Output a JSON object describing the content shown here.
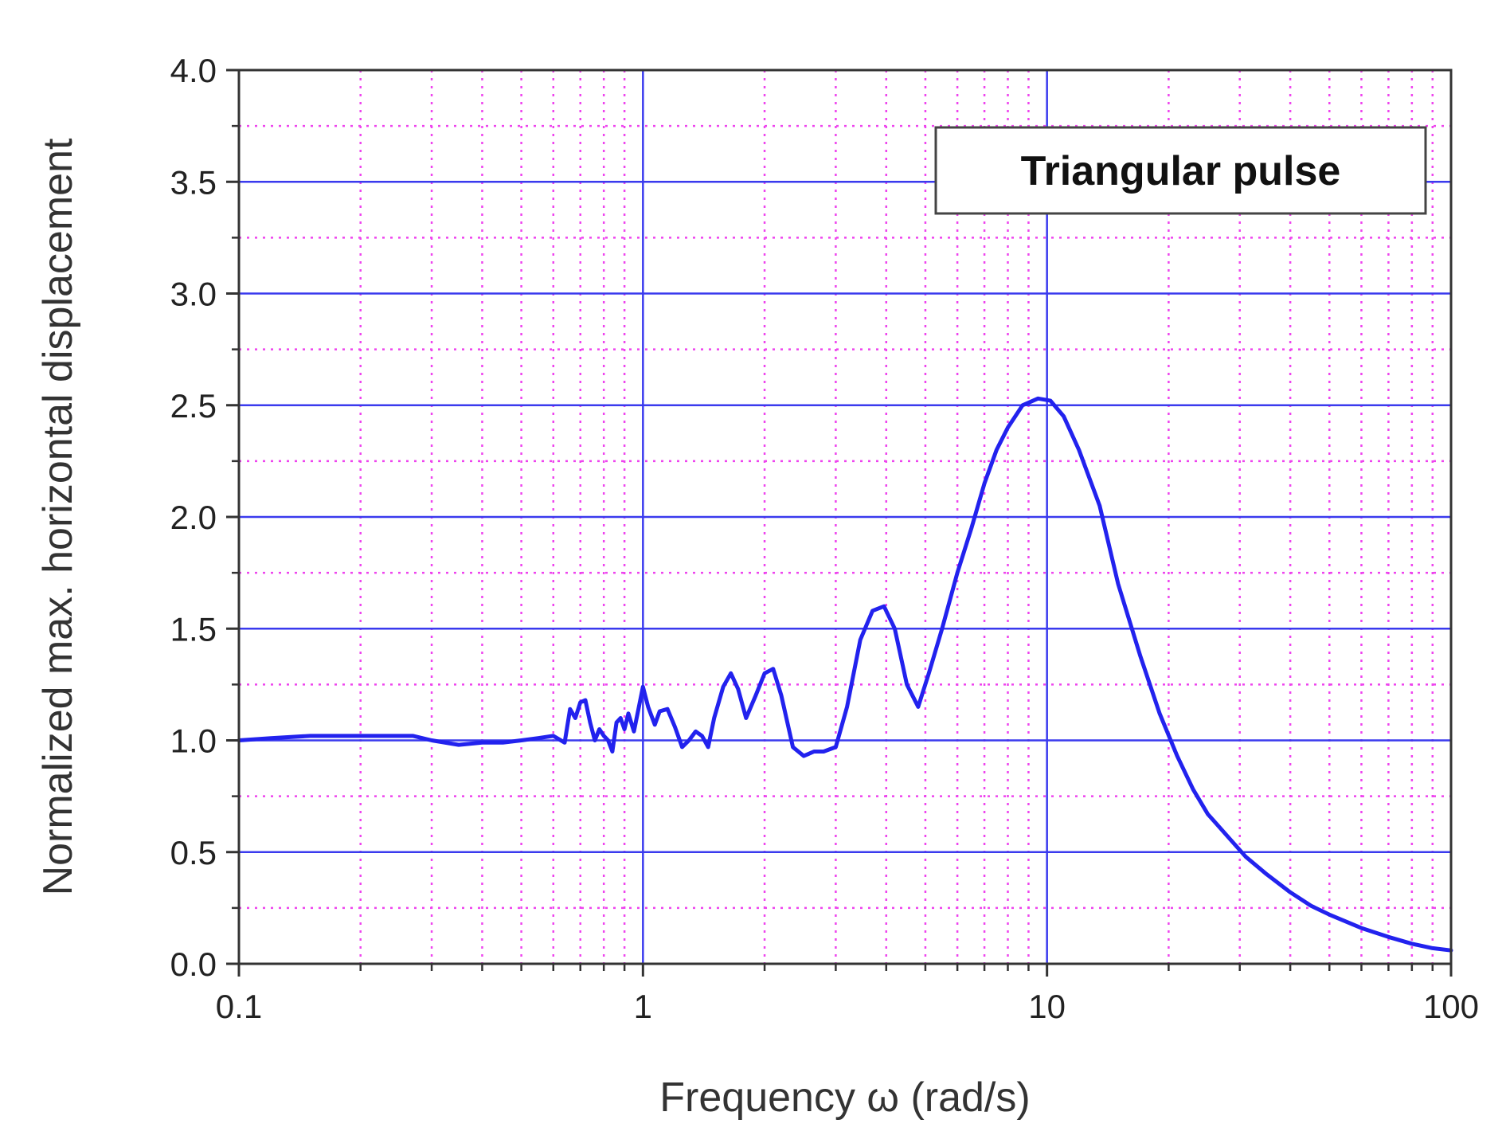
{
  "chart_data": {
    "type": "line",
    "xlabel": "Frequency ω (rad/s)",
    "ylabel": "Normalized max. horizontal displacement",
    "x_scale": "log",
    "xlim": [
      0.1,
      100
    ],
    "ylim": [
      0,
      4.0
    ],
    "x_ticks": [
      0.1,
      1,
      10,
      100
    ],
    "x_tick_labels": [
      "0.1",
      "1",
      "10",
      "100"
    ],
    "y_ticks": [
      0,
      0.5,
      1.0,
      1.5,
      2.0,
      2.5,
      3.0,
      3.5,
      4.0
    ],
    "y_tick_labels": [
      "0.0",
      "0.5",
      "1.0",
      "1.5",
      "2.0",
      "2.5",
      "3.0",
      "3.5",
      "4.0"
    ],
    "grid": {
      "major": true,
      "minor": true,
      "major_color": "#3a3aee",
      "minor_color": "#ee44ee",
      "minor_style": "dotted"
    },
    "legend": {
      "label": "Triangular pulse",
      "placement": "top-right"
    },
    "series": [
      {
        "name": "Triangular pulse",
        "color": "#2222ee",
        "x": [
          0.1,
          0.12,
          0.15,
          0.2,
          0.27,
          0.3,
          0.35,
          0.4,
          0.45,
          0.5,
          0.55,
          0.6,
          0.64,
          0.66,
          0.68,
          0.7,
          0.72,
          0.74,
          0.76,
          0.78,
          0.8,
          0.82,
          0.84,
          0.86,
          0.88,
          0.9,
          0.92,
          0.95,
          1.0,
          1.03,
          1.07,
          1.1,
          1.15,
          1.2,
          1.25,
          1.3,
          1.35,
          1.4,
          1.45,
          1.5,
          1.58,
          1.65,
          1.72,
          1.8,
          1.9,
          2.0,
          2.1,
          2.2,
          2.35,
          2.5,
          2.65,
          2.8,
          3.0,
          3.2,
          3.45,
          3.7,
          3.95,
          4.2,
          4.5,
          4.8,
          5.1,
          5.5,
          6.0,
          6.5,
          7.0,
          7.5,
          8.0,
          8.7,
          9.5,
          10.2,
          11.0,
          12.0,
          13.5,
          15.0,
          17.0,
          19.0,
          21.0,
          23.0,
          25.0,
          28.0,
          31.0,
          35.0,
          40.0,
          45.0,
          50.0,
          60.0,
          70.0,
          80.0,
          90.0,
          100.0
        ],
        "y": [
          1.0,
          1.01,
          1.02,
          1.02,
          1.02,
          1.0,
          0.98,
          0.99,
          0.99,
          1.0,
          1.01,
          1.02,
          0.99,
          1.14,
          1.1,
          1.17,
          1.18,
          1.08,
          1.0,
          1.05,
          1.02,
          1.0,
          0.95,
          1.08,
          1.1,
          1.05,
          1.12,
          1.04,
          1.24,
          1.15,
          1.07,
          1.13,
          1.14,
          1.06,
          0.97,
          1.0,
          1.04,
          1.02,
          0.97,
          1.1,
          1.24,
          1.3,
          1.23,
          1.1,
          1.2,
          1.3,
          1.32,
          1.2,
          0.97,
          0.93,
          0.95,
          0.95,
          0.97,
          1.15,
          1.45,
          1.58,
          1.6,
          1.5,
          1.25,
          1.15,
          1.3,
          1.5,
          1.75,
          1.95,
          2.15,
          2.3,
          2.4,
          2.5,
          2.53,
          2.52,
          2.45,
          2.3,
          2.05,
          1.7,
          1.38,
          1.12,
          0.93,
          0.78,
          0.67,
          0.57,
          0.48,
          0.4,
          0.32,
          0.26,
          0.22,
          0.16,
          0.12,
          0.09,
          0.07,
          0.06
        ]
      }
    ]
  }
}
